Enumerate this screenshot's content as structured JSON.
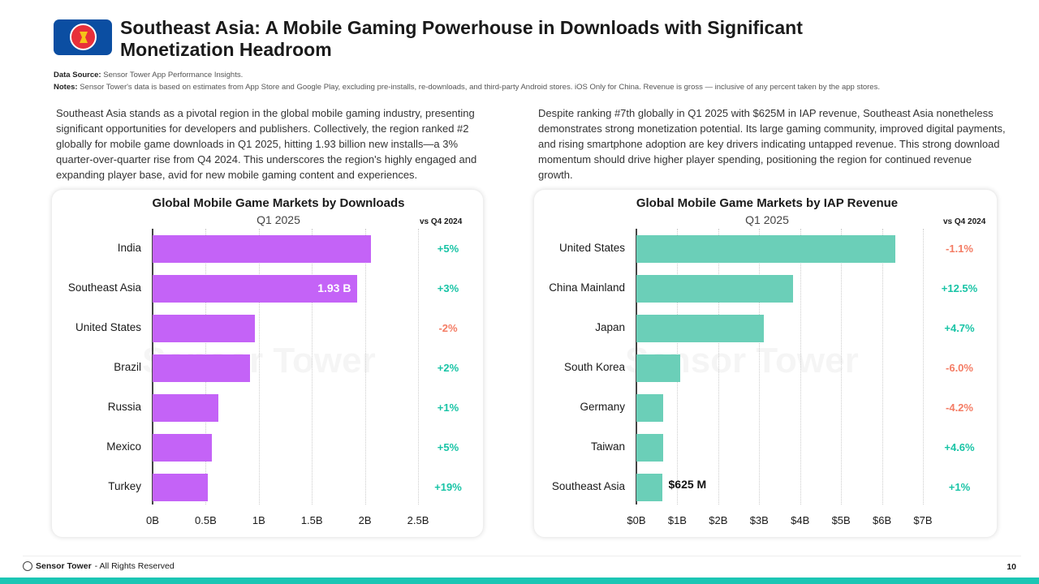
{
  "header": {
    "title": "Southeast Asia: A Mobile Gaming Powerhouse in Downloads with Significant Monetization Headroom",
    "source_label": "Data Source:",
    "source": "Sensor Tower App Performance Insights.",
    "notes_label": "Notes:",
    "notes": "Sensor Tower's data is based on estimates from App Store and Google Play, excluding pre-installs, re-downloads, and third-party Android stores. iOS Only for China.  Revenue is gross — inclusive of any percent taken by the app stores."
  },
  "paragraphs": [
    "Southeast Asia stands as a pivotal region in the global mobile gaming industry, presenting significant opportunities for developers and publishers. Collectively, the region ranked #2 globally for mobile game downloads in Q1 2025, hitting 1.93 billion new installs—a 3% quarter-over-quarter rise from Q4 2024. This underscores the region's highly engaged and expanding player base, avid for new mobile gaming content and experiences.",
    "Despite ranking #7th globally in Q1 2025 with $625M in IAP revenue, Southeast Asia nonetheless demonstrates strong monetization potential. Its large gaming community, improved digital payments, and rising smartphone adoption are key drivers indicating untapped revenue. This strong download momentum should drive higher player spending, positioning the region for continued revenue growth."
  ],
  "chart_data": [
    {
      "type": "bar",
      "orientation": "horizontal",
      "title": "Global Mobile Game Markets by Downloads",
      "subtitle": "Q1 2025",
      "change_header": "vs Q4 2024",
      "categories": [
        "India",
        "Southeast Asia",
        "United States",
        "Brazil",
        "Russia",
        "Mexico",
        "Turkey"
      ],
      "values": [
        2.06,
        1.93,
        0.96,
        0.92,
        0.62,
        0.56,
        0.52
      ],
      "unit": "B downloads",
      "changes": [
        "+5%",
        "+3%",
        "-2%",
        "+2%",
        "+1%",
        "+5%",
        "+19%"
      ],
      "annotation": {
        "index": 1,
        "text": "1.93 B"
      },
      "xlim": [
        0,
        2.5
      ],
      "ticks": [
        0,
        0.5,
        1,
        1.5,
        2,
        2.5
      ],
      "tick_labels": [
        "0B",
        "0.5B",
        "1B",
        "1.5B",
        "2B",
        "2.5B"
      ],
      "bar_color": "#c463f7",
      "grid": true
    },
    {
      "type": "bar",
      "orientation": "horizontal",
      "title": "Global Mobile Game Markets by IAP Revenue",
      "subtitle": "Q1 2025",
      "change_header": "vs Q4 2024",
      "categories": [
        "United States",
        "China Mainland",
        "Japan",
        "South Korea",
        "Germany",
        "Taiwan",
        "Southeast Asia"
      ],
      "values": [
        6.33,
        3.83,
        3.12,
        1.07,
        0.65,
        0.65,
        0.625
      ],
      "unit": "$B",
      "changes": [
        "-1.1%",
        "+12.5%",
        "+4.7%",
        "-6.0%",
        "-4.2%",
        "+4.6%",
        "+1%"
      ],
      "annotation": {
        "index": 6,
        "text": "$625 M"
      },
      "xlim": [
        0,
        7
      ],
      "ticks": [
        0,
        1,
        2,
        3,
        4,
        5,
        6,
        7
      ],
      "tick_labels": [
        "$0B",
        "$1B",
        "$2B",
        "$3B",
        "$4B",
        "$5B",
        "$6B",
        "$7B"
      ],
      "bar_color": "#6bcfb8",
      "grid": true
    }
  ],
  "colors": {
    "positive": "#19c4a6",
    "negative": "#f47c64"
  },
  "watermark": "Sensor Tower",
  "footer": {
    "brand": "Sensor Tower",
    "text": " - All Rights Reserved",
    "page": "10"
  }
}
